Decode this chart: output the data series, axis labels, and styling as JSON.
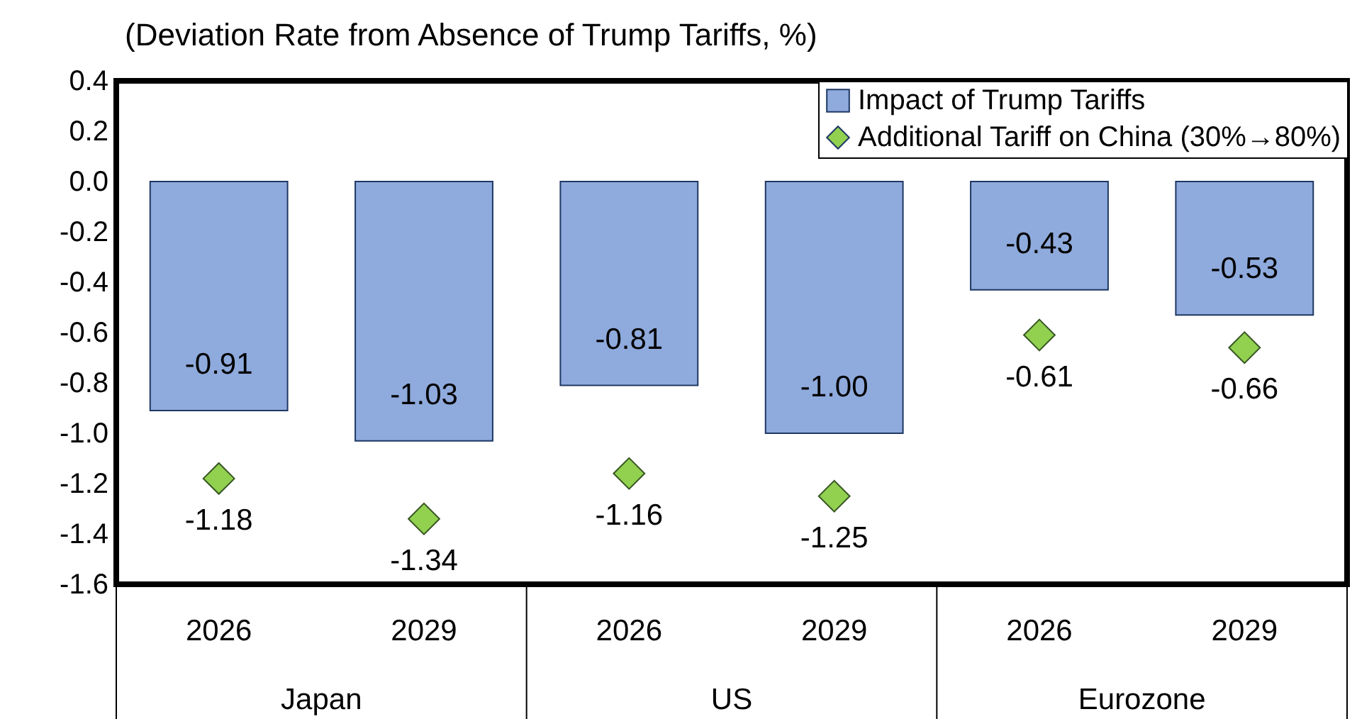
{
  "chart_data": {
    "type": "bar",
    "title": "(Deviation Rate from Absence of Trump Tariffs, %)",
    "categories": [
      "2026",
      "2029",
      "2026",
      "2029",
      "2026",
      "2029"
    ],
    "annotations": [
      "Japan",
      "US",
      "Eurozone"
    ],
    "series": [
      {
        "name": "Impact of Trump Tariffs",
        "color": "#8faadc",
        "values": [
          -0.91,
          -1.03,
          -0.81,
          -1.0,
          -0.43,
          -0.53
        ],
        "value_labels": [
          "-0.91",
          "-1.03",
          "-0.81",
          "-1.00",
          "-0.43",
          "-0.53"
        ]
      },
      {
        "name": "Additional Tariff on China (30%→80%)",
        "type": "scatter",
        "color": "#92d050",
        "marker": "diamond",
        "values": [
          -1.18,
          -1.34,
          -1.16,
          -1.25,
          -0.61,
          -0.66
        ],
        "value_labels": [
          "-1.18",
          "-1.34",
          "-1.16",
          "-1.25",
          "-0.61",
          "-0.66"
        ]
      }
    ],
    "ylim": [
      -1.6,
      0.4
    ],
    "yticks": [
      0.4,
      0.2,
      {
        "value": 0,
        "label": "0.0"
      },
      -0.2,
      -0.4,
      -0.6,
      -0.8,
      {
        "value": -1,
        "label": "-1.0"
      },
      -1.2,
      -1.4,
      -1.6
    ],
    "legend": "top right",
    "grid": false
  }
}
